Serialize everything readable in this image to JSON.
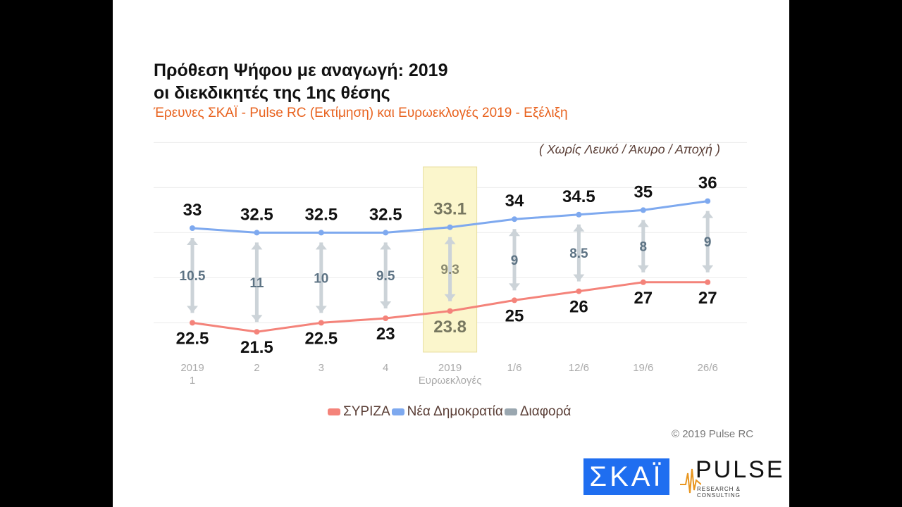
{
  "title_line1": "Πρόθεση Ψήφου με αναγωγή: 2019",
  "title_line2": "οι διεκδικητές της 1ης θέσης",
  "subtitle": "Έρευνες ΣΚΑΪ - Pulse RC (Εκτίμηση) και Ευρωεκλογές 2019 - Εξέλιξη",
  "note": "( Χωρίς Λευκό / Άκυρο / Αποχή )",
  "copyright": "© 2019 Pulse RC",
  "logos": {
    "skai": "ΣΚΑΪ",
    "pulse": "PULSE",
    "pulse_sub": "RESEARCH & CONSULTING"
  },
  "chart_data": {
    "type": "line",
    "categories": [
      [
        "2019",
        "1"
      ],
      [
        "2"
      ],
      [
        "3"
      ],
      [
        "4"
      ],
      [
        "2019",
        "Ευρωεκλογές"
      ],
      [
        "1/6"
      ],
      [
        "12/6"
      ],
      [
        "19/6"
      ],
      [
        "26/6"
      ]
    ],
    "highlight_index": 4,
    "series": [
      {
        "name": "ΣΥΡΙΖΑ",
        "color": "#f4837a",
        "values": [
          22.5,
          21.5,
          22.5,
          23,
          23.8,
          25,
          26,
          27,
          27
        ]
      },
      {
        "name": "Νέα Δημοκρατία",
        "color": "#7ea9ef",
        "values": [
          33,
          32.5,
          32.5,
          32.5,
          33.1,
          34,
          34.5,
          35,
          36
        ]
      },
      {
        "name": "Διαφορά",
        "color": "#9aa7b0",
        "values": [
          10.5,
          11,
          10,
          9.5,
          9.3,
          9,
          8.5,
          8,
          9
        ]
      }
    ],
    "ylim": [
      20,
      40
    ]
  }
}
